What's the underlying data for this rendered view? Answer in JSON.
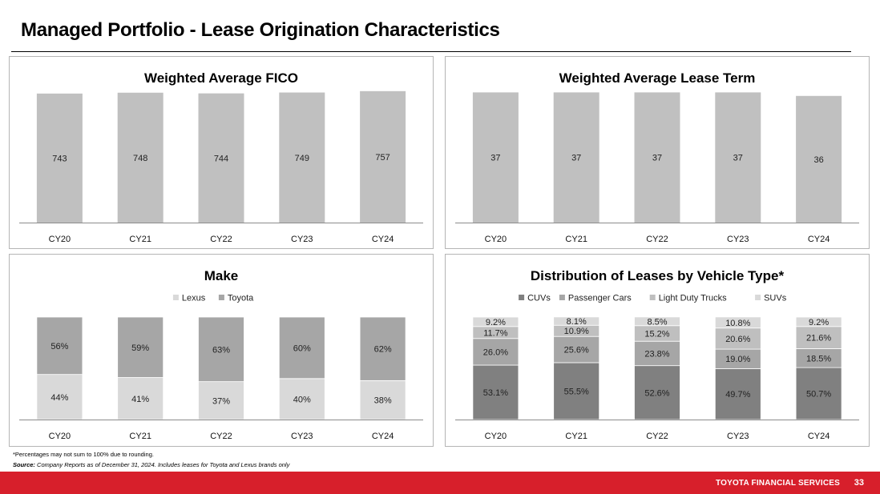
{
  "page": {
    "title": "Managed Portfolio - Lease Origination Characteristics",
    "footnote": "*Percentages may not sum to 100% due to rounding.",
    "source_label": "Source:",
    "source_text": "Company Reports as of December 31, 2024. Includes leases for Toyota and Lexus brands only",
    "footer_brand": "TOYOTA FINANCIAL SERVICES",
    "page_number": "33"
  },
  "colors": {
    "bar_gray": "#c0c0c0",
    "lexus": "#d9d9d9",
    "toyota": "#a6a6a6",
    "cuvs": "#808080",
    "passenger_cars": "#a6a6a6",
    "light_duty_trucks": "#bfbfbf",
    "suvs": "#d9d9d9",
    "axis": "#8c8c8c",
    "footer_red": "#d71f2b"
  },
  "chart_data": [
    {
      "type": "bar",
      "title": "Weighted Average FICO",
      "categories": [
        "CY20",
        "CY21",
        "CY22",
        "CY23",
        "CY24"
      ],
      "values": [
        743,
        748,
        744,
        749,
        757
      ],
      "labels": [
        "743",
        "748",
        "744",
        "749",
        "757"
      ],
      "ylim": [
        0,
        770
      ],
      "xlabel": "",
      "ylabel": ""
    },
    {
      "type": "bar",
      "title": "Weighted Average Lease Term",
      "categories": [
        "CY20",
        "CY21",
        "CY22",
        "CY23",
        "CY24"
      ],
      "values": [
        37,
        37,
        37,
        37,
        36
      ],
      "labels": [
        "37",
        "37",
        "37",
        "37",
        "36"
      ],
      "ylim": [
        0,
        38
      ],
      "xlabel": "",
      "ylabel": ""
    },
    {
      "type": "bar",
      "stacked": true,
      "title": "Make",
      "legend": "top",
      "categories": [
        "CY20",
        "CY21",
        "CY22",
        "CY23",
        "CY24"
      ],
      "series": [
        {
          "name": "Lexus",
          "values": [
            44,
            41,
            37,
            40,
            38
          ],
          "labels": [
            "44%",
            "41%",
            "37%",
            "40%",
            "38%"
          ]
        },
        {
          "name": "Toyota",
          "values": [
            56,
            59,
            63,
            60,
            62
          ],
          "labels": [
            "56%",
            "59%",
            "63%",
            "60%",
            "62%"
          ]
        }
      ],
      "ylim": [
        0,
        100
      ]
    },
    {
      "type": "bar",
      "stacked": true,
      "title": "Distribution of Leases by Vehicle Type*",
      "legend": "top",
      "categories": [
        "CY20",
        "CY21",
        "CY22",
        "CY23",
        "CY24"
      ],
      "series": [
        {
          "name": "CUVs",
          "values": [
            53.1,
            55.5,
            52.6,
            49.7,
            50.7
          ],
          "labels": [
            "53.1%",
            "55.5%",
            "52.6%",
            "49.7%",
            "50.7%"
          ]
        },
        {
          "name": "Passenger Cars",
          "values": [
            26.0,
            25.6,
            23.8,
            19.0,
            18.5
          ],
          "labels": [
            "26.0%",
            "25.6%",
            "23.8%",
            "19.0%",
            "18.5%"
          ]
        },
        {
          "name": "Light Duty Trucks",
          "values": [
            11.7,
            10.9,
            15.2,
            20.6,
            21.6
          ],
          "labels": [
            "11.7%",
            "10.9%",
            "15.2%",
            "20.6%",
            "21.6%"
          ]
        },
        {
          "name": "SUVs",
          "values": [
            9.2,
            8.1,
            8.5,
            10.8,
            9.2
          ],
          "labels": [
            "9.2%",
            "8.1%",
            "8.5%",
            "10.8%",
            "9.2%"
          ]
        }
      ],
      "ylim": [
        0,
        100
      ]
    }
  ]
}
